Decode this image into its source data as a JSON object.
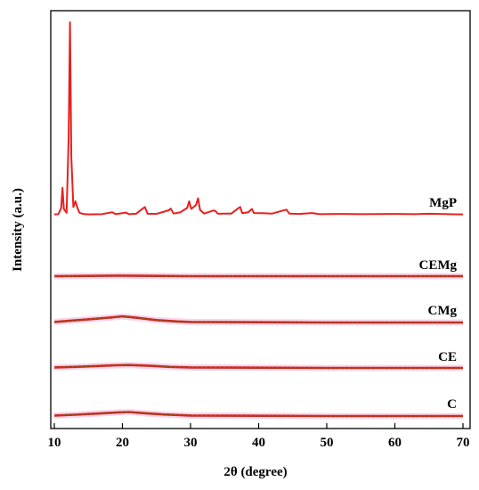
{
  "chart_data": {
    "type": "line",
    "title": "",
    "xlabel": "2θ (degree)",
    "ylabel": "Intensity (a.u.)",
    "xlim": [
      10,
      70
    ],
    "xticks": [
      10,
      20,
      30,
      40,
      50,
      60,
      70
    ],
    "yticks_shown": false,
    "grid": false,
    "colors": {
      "MgP": "#e8201e",
      "baseline": "#c8281c",
      "overlay": "#6b7a12",
      "halo": "#f5c2e6"
    },
    "series": [
      {
        "name": "MgP",
        "x": [
          10.0,
          10.6,
          11.0,
          11.2,
          11.4,
          11.8,
          12.1,
          12.3,
          12.5,
          12.8,
          13.1,
          13.4,
          13.7,
          14.2,
          15.0,
          17.0,
          18.5,
          19.0,
          20.5,
          21.0,
          22.0,
          23.0,
          23.3,
          23.7,
          25.0,
          26.8,
          27.1,
          27.5,
          28.5,
          29.5,
          29.8,
          30.1,
          30.8,
          31.1,
          31.4,
          32.0,
          33.4,
          33.7,
          34.0,
          36.0,
          37.0,
          37.3,
          37.6,
          38.5,
          39.0,
          39.3,
          40.5,
          42.0,
          43.8,
          44.1,
          44.5,
          46.0,
          47.8,
          49.0,
          52.0,
          55.0,
          60.0,
          63.0,
          65.0,
          68.0,
          70.0
        ],
        "y": [
          0.2,
          0.3,
          3.5,
          14.0,
          3.0,
          1.0,
          40.0,
          100.0,
          30.0,
          4.0,
          7.0,
          3.5,
          1.0,
          0.4,
          0.2,
          0.3,
          1.3,
          0.3,
          1.1,
          0.3,
          0.5,
          3.2,
          4.0,
          0.5,
          0.4,
          2.3,
          3.2,
          0.6,
          1.2,
          3.5,
          7.0,
          3.0,
          5.0,
          8.5,
          2.5,
          0.6,
          2.2,
          1.8,
          0.5,
          0.6,
          3.4,
          4.0,
          0.8,
          1.3,
          3.0,
          0.9,
          0.8,
          0.6,
          2.4,
          2.6,
          0.6,
          0.4,
          0.9,
          0.3,
          0.4,
          0.3,
          0.4,
          0.3,
          0.5,
          0.3,
          0.2
        ]
      },
      {
        "name": "CEMg",
        "x": [
          10,
          15,
          20,
          25,
          30,
          40,
          50,
          60,
          70
        ],
        "y": [
          0,
          0.1,
          0.2,
          0.1,
          0,
          0,
          0,
          0,
          0
        ]
      },
      {
        "name": "CMg",
        "x": [
          10,
          12,
          15,
          18,
          20,
          22,
          25,
          28,
          30,
          40,
          50,
          60,
          70
        ],
        "y": [
          0.2,
          0.6,
          1.2,
          1.8,
          2.3,
          1.8,
          0.9,
          0.4,
          0.2,
          0.1,
          0,
          0,
          0
        ]
      },
      {
        "name": "CE",
        "x": [
          10,
          13,
          16,
          19,
          21,
          24,
          27,
          30,
          40,
          50,
          60,
          70
        ],
        "y": [
          0.2,
          0.4,
          0.7,
          1.0,
          1.1,
          0.8,
          0.4,
          0.2,
          0.1,
          0,
          0,
          0
        ]
      },
      {
        "name": "C",
        "x": [
          10,
          13,
          16,
          19,
          21,
          23,
          26,
          30,
          40,
          50,
          60,
          70
        ],
        "y": [
          0.2,
          0.5,
          0.9,
          1.3,
          1.5,
          1.1,
          0.6,
          0.2,
          0.1,
          0,
          0,
          0
        ]
      }
    ]
  }
}
